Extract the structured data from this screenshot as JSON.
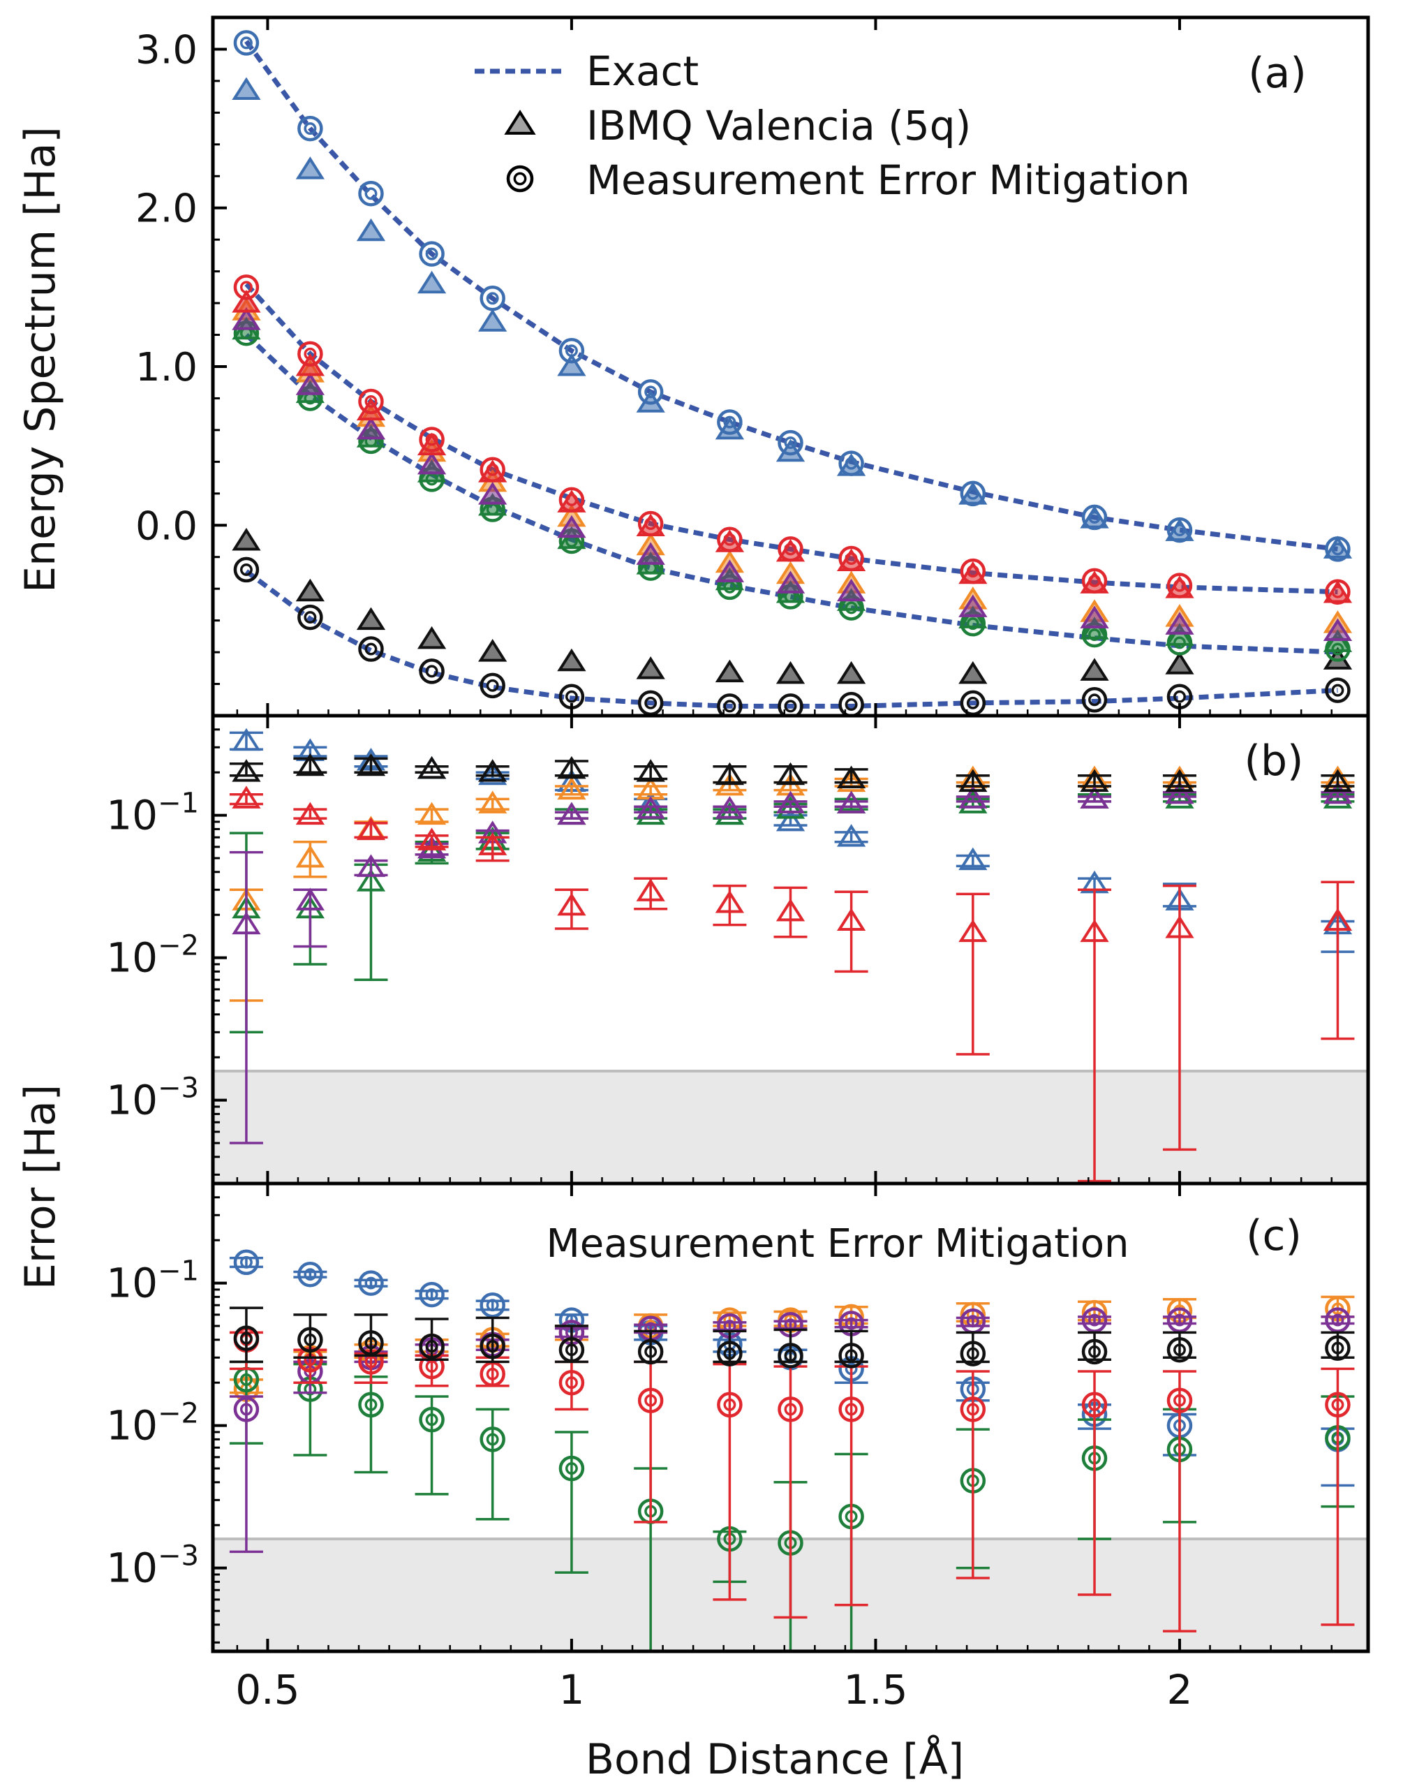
{
  "figure": {
    "shared_xlabel": "Bond Distance [Å]",
    "shared_ylabel_error": "Error [Ha]",
    "x_ticks": [
      0.5,
      1,
      1.5,
      2
    ],
    "x_tick_labels": [
      "0.5",
      "1",
      "1.5",
      "2"
    ],
    "xlim": [
      0.41,
      2.31
    ]
  },
  "colors": {
    "blue": "#3d6fb0",
    "orange": "#f28c28",
    "green": "#1e7f3a",
    "purple": "#7b3294",
    "red": "#e0282e",
    "black": "#111111",
    "exact": "#3a56a6",
    "shade": "#dedede"
  },
  "chart_data": [
    {
      "panel": "a",
      "type": "scatter",
      "label": "(a)",
      "ylabel": "Energy Spectrum [Ha]",
      "ylim": [
        -1.2,
        3.2
      ],
      "y_ticks": [
        0.0,
        1.0,
        2.0,
        3.0
      ],
      "y_tick_labels": [
        "0.0",
        "1.0",
        "2.0",
        "3.0"
      ],
      "legend": {
        "position": "top-center",
        "entries": [
          "Exact",
          "IBMQ Valencia (5q)",
          "Measurement Error Mitigation"
        ]
      },
      "x": [
        0.465,
        0.57,
        0.67,
        0.77,
        0.87,
        1.0,
        1.13,
        1.26,
        1.36,
        1.46,
        1.66,
        1.86,
        2.0,
        2.26
      ],
      "exact_curves": [
        {
          "name": "E0",
          "values": [
            -0.29,
            -0.59,
            -0.79,
            -0.93,
            -1.02,
            -1.09,
            -1.12,
            -1.14,
            -1.14,
            -1.14,
            -1.12,
            -1.11,
            -1.09,
            -1.04
          ]
        },
        {
          "name": "E1",
          "values": [
            1.2,
            0.82,
            0.55,
            0.32,
            0.12,
            -0.09,
            -0.27,
            -0.38,
            -0.45,
            -0.52,
            -0.63,
            -0.71,
            -0.76,
            -0.8
          ]
        },
        {
          "name": "E2",
          "values": [
            1.52,
            1.08,
            0.78,
            0.55,
            0.35,
            0.17,
            0.01,
            -0.09,
            -0.15,
            -0.21,
            -0.3,
            -0.36,
            -0.39,
            -0.42
          ]
        },
        {
          "name": "E3",
          "values": [
            3.05,
            2.5,
            2.08,
            1.71,
            1.43,
            1.1,
            0.84,
            0.65,
            0.52,
            0.4,
            0.21,
            0.05,
            -0.03,
            -0.15
          ]
        }
      ],
      "series": [
        {
          "name": "black",
          "raw": [
            -0.1,
            -0.42,
            -0.6,
            -0.72,
            -0.8,
            -0.86,
            -0.91,
            -0.93,
            -0.94,
            -0.94,
            -0.94,
            -0.92,
            -0.88,
            -0.85
          ],
          "mitigated": [
            -0.28,
            -0.58,
            -0.78,
            -0.92,
            -1.01,
            -1.08,
            -1.12,
            -1.14,
            -1.14,
            -1.13,
            -1.12,
            -1.1,
            -1.08,
            -1.04
          ]
        },
        {
          "name": "blue",
          "raw": [
            2.74,
            2.24,
            1.85,
            1.52,
            1.28,
            1.0,
            0.77,
            0.6,
            0.46,
            0.37,
            0.19,
            0.04,
            -0.04,
            -0.15
          ],
          "mitigated": [
            3.04,
            2.5,
            2.09,
            1.71,
            1.43,
            1.1,
            0.84,
            0.65,
            0.52,
            0.39,
            0.2,
            0.05,
            -0.03,
            -0.15
          ]
        },
        {
          "name": "orange",
          "raw": [
            1.35,
            0.96,
            0.68,
            0.46,
            0.27,
            0.05,
            -0.13,
            -0.24,
            -0.31,
            -0.37,
            -0.47,
            -0.55,
            -0.58,
            -0.62
          ]
        },
        {
          "name": "green",
          "raw": [
            1.23,
            0.83,
            0.55,
            0.33,
            0.12,
            -0.09,
            -0.25,
            -0.35,
            -0.43,
            -0.48,
            -0.59,
            -0.66,
            -0.7,
            -0.74
          ],
          "mitigated": [
            1.21,
            0.8,
            0.53,
            0.29,
            0.1,
            -0.1,
            -0.27,
            -0.39,
            -0.45,
            -0.52,
            -0.62,
            -0.69,
            -0.74,
            -0.78
          ]
        },
        {
          "name": "purple",
          "raw": [
            1.29,
            0.88,
            0.6,
            0.38,
            0.19,
            -0.02,
            -0.19,
            -0.3,
            -0.37,
            -0.42,
            -0.52,
            -0.59,
            -0.63,
            -0.67
          ]
        },
        {
          "name": "red",
          "raw": [
            1.4,
            1.0,
            0.72,
            0.5,
            0.33,
            0.14,
            -0.01,
            -0.11,
            -0.17,
            -0.23,
            -0.31,
            -0.37,
            -0.4,
            -0.43
          ],
          "mitigated": [
            1.5,
            1.08,
            0.78,
            0.54,
            0.35,
            0.16,
            0.01,
            -0.09,
            -0.15,
            -0.21,
            -0.29,
            -0.35,
            -0.38,
            -0.42
          ]
        }
      ]
    },
    {
      "panel": "b",
      "type": "scatter",
      "label": "(b)",
      "yscale": "log",
      "ylim": [
        0.00026,
        0.5
      ],
      "y_ticks": [
        0.001,
        0.01,
        0.1
      ],
      "y_tick_labels": [
        "10",
        "10",
        "10"
      ],
      "y_tick_exponents": [
        "−3",
        "−2",
        "−1"
      ],
      "shade_below": 0.0016,
      "x": [
        0.465,
        0.57,
        0.67,
        0.77,
        0.87,
        1.0,
        1.13,
        1.26,
        1.36,
        1.46,
        1.66,
        1.86,
        2.0,
        2.26
      ],
      "series": [
        {
          "name": "blue",
          "marker": "triangle",
          "values": [
            0.33,
            0.28,
            0.24,
            0.21,
            0.19,
            0.17,
            0.12,
            0.1,
            0.09,
            0.07,
            0.048,
            0.033,
            0.025,
            0.017
          ],
          "err_low": [
            0.29,
            0.26,
            0.22,
            0.2,
            0.18,
            0.15,
            0.11,
            0.095,
            0.085,
            0.065,
            0.044,
            0.03,
            0.023,
            0.011
          ],
          "err_high": [
            0.38,
            0.3,
            0.26,
            0.22,
            0.2,
            0.19,
            0.13,
            0.11,
            0.1,
            0.076,
            0.052,
            0.036,
            0.033,
            0.018
          ]
        },
        {
          "name": "orange",
          "marker": "triangle",
          "values": [
            0.025,
            0.05,
            0.08,
            0.1,
            0.12,
            0.15,
            0.15,
            0.16,
            0.16,
            0.17,
            0.18,
            0.18,
            0.18,
            0.18
          ],
          "err_low": [
            0.005,
            0.037,
            0.07,
            0.09,
            0.11,
            0.14,
            0.14,
            0.15,
            0.15,
            0.16,
            0.17,
            0.17,
            0.17,
            0.17
          ],
          "err_high": [
            0.03,
            0.065,
            0.09,
            0.11,
            0.13,
            0.16,
            0.16,
            0.17,
            0.17,
            0.18,
            0.19,
            0.19,
            0.19,
            0.19
          ]
        },
        {
          "name": "green",
          "marker": "triangle",
          "values": [
            0.022,
            0.022,
            0.034,
            0.055,
            0.067,
            0.1,
            0.1,
            0.1,
            0.11,
            0.12,
            0.12,
            0.13,
            0.13,
            0.13
          ],
          "err_low": [
            0.003,
            0.009,
            0.007,
            0.046,
            0.058,
            0.095,
            0.095,
            0.095,
            0.105,
            0.11,
            0.115,
            0.125,
            0.125,
            0.125
          ],
          "err_high": [
            0.075,
            0.03,
            0.045,
            0.065,
            0.075,
            0.11,
            0.11,
            0.11,
            0.12,
            0.13,
            0.13,
            0.14,
            0.14,
            0.14
          ]
        },
        {
          "name": "purple",
          "marker": "triangle",
          "values": [
            0.017,
            0.025,
            0.043,
            0.058,
            0.074,
            0.1,
            0.11,
            0.11,
            0.12,
            0.12,
            0.13,
            0.13,
            0.14,
            0.14
          ],
          "err_low": [
            0.0005,
            0.012,
            0.038,
            0.053,
            0.07,
            0.095,
            0.105,
            0.105,
            0.115,
            0.115,
            0.125,
            0.125,
            0.135,
            0.135
          ],
          "err_high": [
            0.055,
            0.03,
            0.048,
            0.063,
            0.078,
            0.105,
            0.115,
            0.115,
            0.125,
            0.125,
            0.135,
            0.135,
            0.145,
            0.145
          ]
        },
        {
          "name": "red",
          "marker": "triangle",
          "values": [
            0.13,
            0.1,
            0.078,
            0.066,
            0.061,
            0.023,
            0.029,
            0.024,
            0.021,
            0.018,
            0.015,
            0.015,
            0.016,
            0.018
          ],
          "err_low": [
            0.12,
            0.095,
            0.07,
            0.06,
            0.048,
            0.016,
            0.022,
            0.017,
            0.014,
            0.008,
            0.0021,
            0.00027,
            0.00045,
            0.0027
          ],
          "err_high": [
            0.14,
            0.11,
            0.088,
            0.072,
            0.07,
            0.03,
            0.036,
            0.032,
            0.031,
            0.029,
            0.028,
            0.03,
            0.032,
            0.034
          ]
        },
        {
          "name": "black",
          "marker": "triangle",
          "values": [
            0.2,
            0.22,
            0.22,
            0.21,
            0.2,
            0.21,
            0.2,
            0.19,
            0.19,
            0.18,
            0.17,
            0.17,
            0.17,
            0.17
          ],
          "err_low": [
            0.19,
            0.2,
            0.2,
            0.2,
            0.19,
            0.19,
            0.18,
            0.17,
            0.17,
            0.17,
            0.16,
            0.16,
            0.16,
            0.16
          ],
          "err_high": [
            0.23,
            0.25,
            0.25,
            0.22,
            0.22,
            0.24,
            0.22,
            0.22,
            0.22,
            0.21,
            0.19,
            0.19,
            0.19,
            0.19
          ]
        }
      ]
    },
    {
      "panel": "c",
      "type": "scatter",
      "label": "(c)",
      "title": "Measurement Error Mitigation",
      "yscale": "log",
      "ylim": [
        0.00026,
        0.5
      ],
      "y_ticks": [
        0.001,
        0.01,
        0.1
      ],
      "y_tick_labels": [
        "10",
        "10",
        "10"
      ],
      "y_tick_exponents": [
        "−3",
        "−2",
        "−1"
      ],
      "shade_below": 0.0016,
      "x": [
        0.465,
        0.57,
        0.67,
        0.77,
        0.87,
        1.0,
        1.13,
        1.26,
        1.36,
        1.46,
        1.66,
        1.86,
        2.0,
        2.26
      ],
      "series": [
        {
          "name": "blue",
          "marker": "circle",
          "values": [
            0.14,
            0.115,
            0.1,
            0.083,
            0.07,
            0.055,
            0.045,
            0.037,
            0.03,
            0.025,
            0.018,
            0.012,
            0.01,
            0.008
          ],
          "err_low": [
            0.13,
            0.11,
            0.095,
            0.078,
            0.065,
            0.05,
            0.04,
            0.033,
            0.028,
            0.02,
            0.015,
            0.0095,
            0.0062,
            0.0038
          ],
          "err_high": [
            0.15,
            0.12,
            0.105,
            0.088,
            0.075,
            0.06,
            0.05,
            0.04,
            0.034,
            0.028,
            0.02,
            0.014,
            0.012,
            0.0095
          ]
        },
        {
          "name": "orange",
          "marker": "circle",
          "values": [
            0.018,
            0.03,
            0.033,
            0.036,
            0.04,
            0.045,
            0.05,
            0.055,
            0.055,
            0.058,
            0.06,
            0.062,
            0.064,
            0.066
          ],
          "err_low": [
            0.017,
            0.028,
            0.03,
            0.033,
            0.036,
            0.04,
            0.045,
            0.05,
            0.05,
            0.052,
            0.054,
            0.055,
            0.057,
            0.058
          ],
          "err_high": [
            0.021,
            0.033,
            0.037,
            0.04,
            0.044,
            0.05,
            0.06,
            0.062,
            0.063,
            0.068,
            0.072,
            0.074,
            0.077,
            0.08
          ]
        },
        {
          "name": "green",
          "marker": "circle",
          "values": [
            0.021,
            0.018,
            0.014,
            0.011,
            0.008,
            0.005,
            0.0025,
            0.0016,
            0.0015,
            0.0023,
            0.0041,
            0.0059,
            0.0068,
            0.0082
          ],
          "err_low": [
            0.0075,
            0.0062,
            0.0047,
            0.0033,
            0.0022,
            0.00093,
            0.00026,
            0.0008,
            0.00026,
            0.00026,
            0.001,
            0.0016,
            0.0021,
            0.0027
          ],
          "err_high": [
            0.028,
            0.027,
            0.022,
            0.016,
            0.013,
            0.009,
            0.005,
            0.0018,
            0.004,
            0.0063,
            0.0094,
            0.011,
            0.013,
            0.016
          ]
        },
        {
          "name": "purple",
          "marker": "circle",
          "values": [
            0.013,
            0.024,
            0.03,
            0.034,
            0.037,
            0.045,
            0.048,
            0.05,
            0.051,
            0.052,
            0.054,
            0.055,
            0.055,
            0.055
          ],
          "err_low": [
            0.0013,
            0.017,
            0.028,
            0.031,
            0.034,
            0.042,
            0.045,
            0.047,
            0.048,
            0.049,
            0.05,
            0.052,
            0.052,
            0.052
          ],
          "err_high": [
            0.016,
            0.028,
            0.033,
            0.037,
            0.04,
            0.048,
            0.051,
            0.053,
            0.054,
            0.055,
            0.057,
            0.058,
            0.058,
            0.058
          ]
        },
        {
          "name": "red",
          "marker": "circle",
          "values": [
            0.04,
            0.029,
            0.028,
            0.026,
            0.023,
            0.02,
            0.015,
            0.014,
            0.013,
            0.013,
            0.013,
            0.014,
            0.015,
            0.014
          ],
          "err_low": [
            0.025,
            0.02,
            0.02,
            0.019,
            0.019,
            0.013,
            0.0021,
            0.0006,
            0.00045,
            0.00055,
            0.00085,
            0.00065,
            0.00036,
            0.0004
          ],
          "err_high": [
            0.045,
            0.034,
            0.032,
            0.031,
            0.03,
            0.028,
            0.028,
            0.027,
            0.026,
            0.026,
            0.024,
            0.024,
            0.024,
            0.025
          ]
        },
        {
          "name": "black",
          "marker": "circle",
          "values": [
            0.041,
            0.04,
            0.038,
            0.036,
            0.036,
            0.034,
            0.033,
            0.032,
            0.031,
            0.031,
            0.032,
            0.033,
            0.034,
            0.035
          ],
          "err_low": [
            0.028,
            0.03,
            0.031,
            0.029,
            0.028,
            0.028,
            0.028,
            0.028,
            0.028,
            0.028,
            0.028,
            0.029,
            0.03,
            0.03
          ],
          "err_high": [
            0.067,
            0.06,
            0.06,
            0.056,
            0.057,
            0.05,
            0.046,
            0.046,
            0.047,
            0.046,
            0.045,
            0.045,
            0.045,
            0.045
          ]
        }
      ]
    }
  ]
}
